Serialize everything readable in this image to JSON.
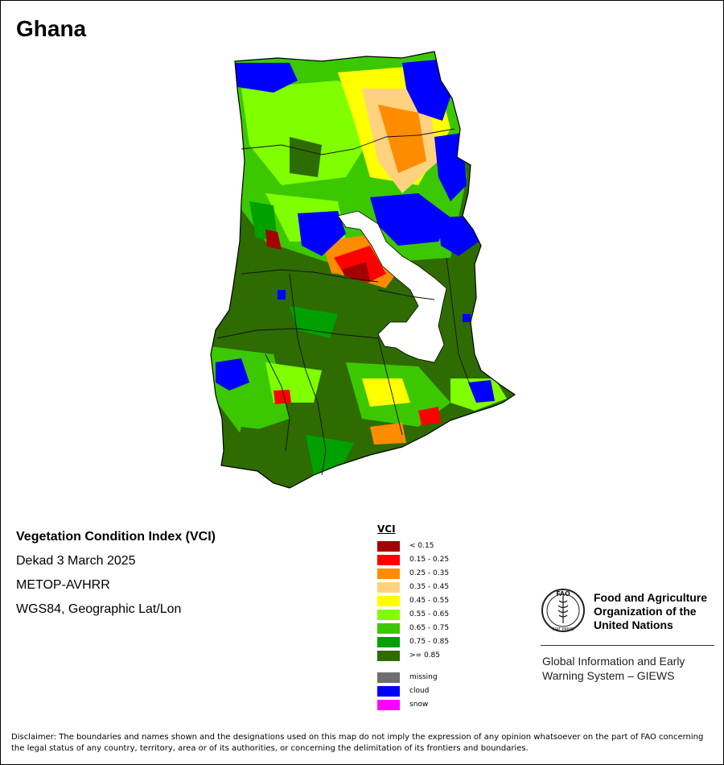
{
  "map": {
    "country": "Ghana"
  },
  "info": {
    "product": "Vegetation Condition Index (VCI)",
    "period": "Dekad 3 March 2025",
    "sensor": "METOP-AVHRR",
    "projection": "WGS84, Geographic Lat/Lon"
  },
  "legend": {
    "title": "VCI",
    "classes": [
      {
        "label": "< 0.15",
        "color": "#a50000"
      },
      {
        "label": "0.15 - 0.25",
        "color": "#ff0000"
      },
      {
        "label": "0.25 - 0.35",
        "color": "#ff8c00"
      },
      {
        "label": "0.35 - 0.45",
        "color": "#ffd27f"
      },
      {
        "label": "0.45 - 0.55",
        "color": "#ffff00"
      },
      {
        "label": "0.55 - 0.65",
        "color": "#7fff00"
      },
      {
        "label": "0.65 - 0.75",
        "color": "#3cc800"
      },
      {
        "label": "0.75 - 0.85",
        "color": "#00a000"
      },
      {
        "label": ">= 0.85",
        "color": "#2e6b00"
      }
    ],
    "other": [
      {
        "label": "missing",
        "color": "#6e6e6e"
      },
      {
        "label": "cloud",
        "color": "#0000ff"
      },
      {
        "label": "snow",
        "color": "#ff00ff"
      }
    ]
  },
  "organization": {
    "name_line1": "Food and Agriculture",
    "name_line2": "Organization of the",
    "name_line3": "United Nations",
    "system_line1": "Global Information and Early",
    "system_line2": "Warning System – GIEWS",
    "emblem_text": "FAO",
    "emblem_motto": "FIAT PANIS"
  },
  "disclaimer": "Disclaimer: The boundaries and names shown and the designations used on this map do not imply the expression of any opinion whatsoever on the part of FAO concerning the legal status of any country, territory, area or of its authorities, or concerning the delimitation of its frontiers and boundaries."
}
